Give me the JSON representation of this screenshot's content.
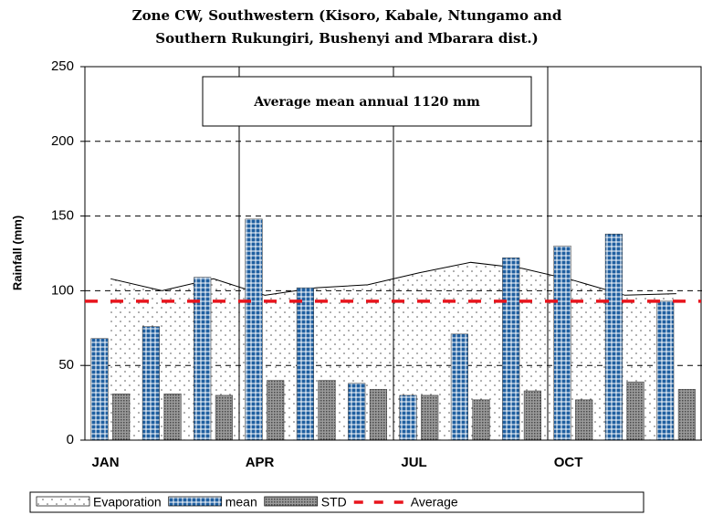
{
  "chart_data": {
    "type": "bar",
    "title": [
      "Zone CW, Southwestern (Kisoro, Kabale, Ntungamo and",
      "Southern Rukungiri, Bushenyi and Mbarara dist.)"
    ],
    "annotation": "Average mean annual 1120 mm",
    "y_label": "Rainfall (mm)",
    "categories": [
      "JAN",
      null,
      null,
      "APR",
      null,
      null,
      "JUL",
      null,
      null,
      "OCT",
      null,
      null
    ],
    "series": [
      {
        "name": "Evaporation",
        "kind": "area",
        "color": "#000000",
        "values": [
          108,
          100,
          108,
          97,
          102,
          104,
          112,
          119,
          115,
          107,
          97,
          98
        ]
      },
      {
        "name": "mean",
        "kind": "bar",
        "color": "#1f5fa0",
        "values": [
          68,
          76,
          109,
          148,
          102,
          38,
          30,
          71,
          122,
          130,
          138,
          93
        ]
      },
      {
        "name": "STD",
        "kind": "bar",
        "color": "#707070",
        "values": [
          31,
          31,
          30,
          40,
          40,
          34,
          30,
          27,
          33,
          27,
          39,
          34
        ]
      },
      {
        "name": "Average",
        "kind": "line",
        "color": "#e8141c",
        "values": [
          93,
          93,
          93,
          93,
          93,
          93,
          93,
          93,
          93,
          93,
          93,
          93
        ]
      }
    ],
    "ylim": [
      0,
      250
    ],
    "yticks": [
      0,
      50,
      100,
      150,
      200,
      250
    ],
    "grid": true
  }
}
